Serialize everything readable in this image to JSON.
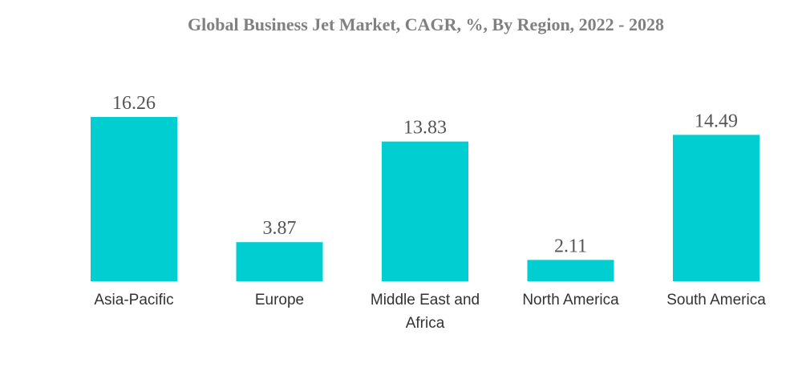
{
  "chart_data": {
    "type": "bar",
    "title": "Global Business Jet Market, CAGR, %, By Region, 2022 - 2028",
    "categories": [
      "Asia-Pacific",
      "Europe",
      "Middle East and Africa",
      "North America",
      "South America"
    ],
    "category_lines": [
      [
        "Asia-Pacific"
      ],
      [
        "Europe"
      ],
      [
        "Middle East and",
        "Africa"
      ],
      [
        "North America"
      ],
      [
        "South America"
      ]
    ],
    "values": [
      16.26,
      3.87,
      13.83,
      2.11,
      14.49
    ],
    "value_labels": [
      "16.26",
      "3.87",
      "13.83",
      "2.11",
      "14.49"
    ],
    "xlabel": "",
    "ylabel": "",
    "ylim": [
      0,
      16.26
    ],
    "grid": false,
    "legend": "none",
    "bar_color": "#00CED1"
  }
}
